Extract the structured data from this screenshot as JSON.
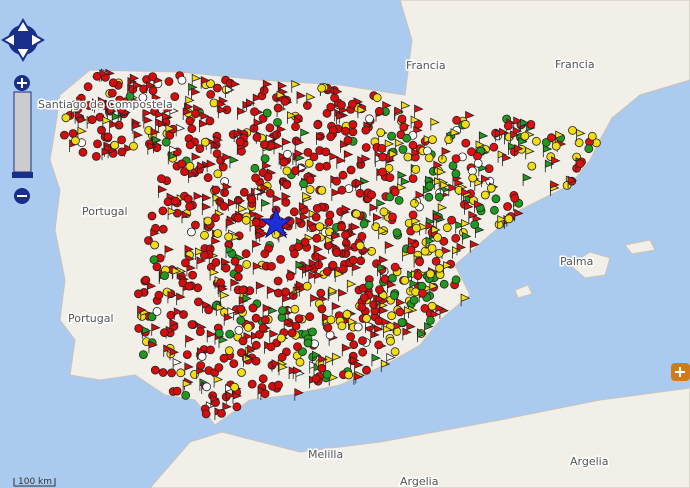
{
  "map": {
    "labels": {
      "france_1": "Francia",
      "france_2": "Francia",
      "portugal_1": "Portugal",
      "portugal_2": "Portugal",
      "algeria_1": "Argelia",
      "algeria_2": "Argelia",
      "melilla": "Melilla",
      "santiago": "Santiago de Compostela",
      "palma": "Palma"
    },
    "scale": "100 km"
  }
}
